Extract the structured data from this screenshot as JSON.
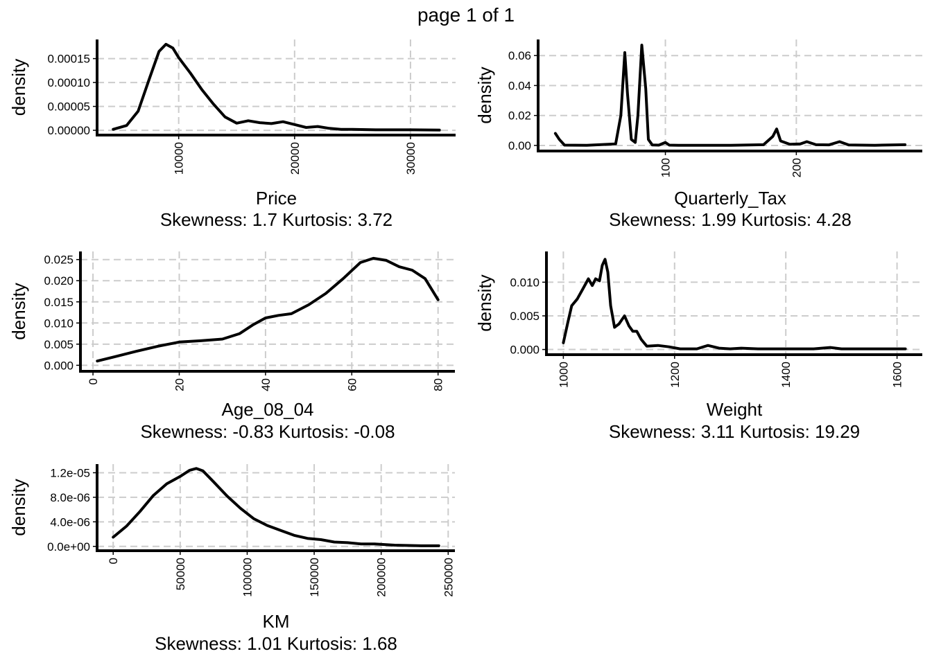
{
  "page": {
    "title": "page 1 of 1"
  },
  "chart_data": [
    {
      "type": "line",
      "variable": "Price",
      "xlabel": "Price",
      "ylabel": "density",
      "subtitle": "Skewness: 1.7 Kurtosis: 3.72",
      "xlim": [
        4350,
        32500
      ],
      "ylim": [
        0,
        0.00018
      ],
      "xticks": [
        10000,
        20000,
        30000
      ],
      "xtick_labels": [
        "10000",
        "20000",
        "30000"
      ],
      "xtick_rotation": "vertical",
      "yticks": [
        0,
        5e-05,
        0.0001,
        0.00015
      ],
      "ytick_labels": [
        "0.00000",
        "0.00005",
        "0.00010",
        "0.00015"
      ],
      "grid": true,
      "series": [
        {
          "x": [
            4350,
            5500,
            6500,
            7500,
            8300,
            8900,
            9500,
            10000,
            11000,
            12000,
            13000,
            14000,
            15000,
            16000,
            17000,
            18000,
            19000,
            20000,
            21000,
            22000,
            23000,
            24000,
            25000,
            27000,
            30000,
            32500
          ],
          "y": [
            2e-06,
            1e-05,
            4e-05,
            0.00011,
            0.000165,
            0.00018,
            0.000172,
            0.000152,
            0.00012,
            8.5e-05,
            5.5e-05,
            2.8e-05,
            1.5e-05,
            2e-05,
            1.6e-05,
            1.4e-05,
            1.8e-05,
            1.2e-05,
            6e-06,
            8e-06,
            4e-06,
            2e-06,
            2e-06,
            1e-06,
            1e-06,
            5e-07
          ]
        }
      ]
    },
    {
      "type": "line",
      "variable": "Quarterly_Tax",
      "xlabel": "Quarterly_Tax",
      "ylabel": "density",
      "subtitle": "Skewness: 1.99 Kurtosis: 4.28",
      "xlim": [
        16,
        283
      ],
      "ylim": [
        0,
        0.067
      ],
      "xticks": [
        100,
        200
      ],
      "xtick_labels": [
        "100",
        "200"
      ],
      "xtick_rotation": "vertical",
      "yticks": [
        0,
        0.02,
        0.04,
        0.06
      ],
      "ytick_labels": [
        "0.00",
        "0.02",
        "0.04",
        "0.06"
      ],
      "grid": true,
      "series": [
        {
          "x": [
            16,
            19,
            23,
            40,
            62,
            66,
            69,
            71,
            74,
            77,
            79,
            82,
            85,
            87,
            90,
            95,
            100,
            103,
            110,
            150,
            175,
            182,
            185,
            188,
            195,
            203,
            208,
            215,
            225,
            233,
            240,
            260,
            283
          ],
          "y": [
            0.008,
            0.004,
            0.0002,
            0.0001,
            0.001,
            0.02,
            0.062,
            0.035,
            0.004,
            0.002,
            0.02,
            0.067,
            0.038,
            0.004,
            0.0003,
            0.0002,
            0.002,
            0.0002,
            0.0001,
            0.0001,
            0.0005,
            0.006,
            0.011,
            0.003,
            0.0008,
            0.001,
            0.0025,
            0.0005,
            0.0004,
            0.0025,
            0.0003,
            0.0001,
            0.0005
          ]
        }
      ]
    },
    {
      "type": "line",
      "variable": "Age_08_04",
      "xlabel": "Age_08_04",
      "ylabel": "density",
      "subtitle": "Skewness: -0.83 Kurtosis: -0.08",
      "xlim": [
        1,
        80
      ],
      "ylim": [
        0,
        0.0255
      ],
      "xticks": [
        0,
        20,
        40,
        60,
        80
      ],
      "xtick_labels": [
        "0",
        "20",
        "40",
        "60",
        "80"
      ],
      "xtick_rotation": "vertical",
      "yticks": [
        0,
        0.005,
        0.01,
        0.015,
        0.02,
        0.025
      ],
      "ytick_labels": [
        "0.000",
        "0.005",
        "0.010",
        "0.015",
        "0.020",
        "0.025"
      ],
      "grid": true,
      "series": [
        {
          "x": [
            1,
            5,
            10,
            15,
            20,
            25,
            30,
            34,
            37,
            40,
            43,
            46,
            50,
            54,
            58,
            62,
            65,
            68,
            71,
            74,
            77,
            80
          ],
          "y": [
            0.001,
            0.002,
            0.0033,
            0.0045,
            0.0055,
            0.0058,
            0.0062,
            0.0075,
            0.0095,
            0.0112,
            0.0118,
            0.0122,
            0.0143,
            0.017,
            0.0205,
            0.0243,
            0.0253,
            0.0248,
            0.0233,
            0.0225,
            0.0205,
            0.0155
          ]
        }
      ]
    },
    {
      "type": "line",
      "variable": "Weight",
      "xlabel": "Weight",
      "ylabel": "density",
      "subtitle": "Skewness: 3.11 Kurtosis: 19.29",
      "xlim": [
        1000,
        1615
      ],
      "ylim": [
        0,
        0.0138
      ],
      "xticks": [
        1000,
        1200,
        1400,
        1600
      ],
      "xtick_labels": [
        "1000",
        "1200",
        "1400",
        "1600"
      ],
      "xtick_rotation": "vertical",
      "yticks": [
        0,
        0.005,
        0.01
      ],
      "ytick_labels": [
        "0.000",
        "0.005",
        "0.010"
      ],
      "grid": true,
      "series": [
        {
          "x": [
            1000,
            1008,
            1015,
            1025,
            1035,
            1045,
            1052,
            1058,
            1065,
            1070,
            1075,
            1080,
            1085,
            1092,
            1100,
            1110,
            1118,
            1125,
            1132,
            1140,
            1150,
            1170,
            1190,
            1210,
            1240,
            1260,
            1280,
            1300,
            1320,
            1350,
            1400,
            1450,
            1480,
            1500,
            1550,
            1615
          ],
          "y": [
            0.001,
            0.004,
            0.0065,
            0.0075,
            0.009,
            0.0105,
            0.0095,
            0.0105,
            0.0102,
            0.0125,
            0.0134,
            0.0115,
            0.0065,
            0.0033,
            0.0038,
            0.005,
            0.0035,
            0.0027,
            0.0027,
            0.0015,
            0.0005,
            0.0006,
            0.0004,
            0.0001,
            0.0001,
            0.0006,
            0.0002,
            0.0001,
            0.0002,
            0.0001,
            0.0001,
            0.0001,
            0.0003,
            0.0001,
            0.0001,
            0.0001
          ]
        }
      ]
    },
    {
      "type": "line",
      "variable": "KM",
      "xlabel": "KM",
      "ylabel": "density",
      "subtitle": "Skewness: 1.01 Kurtosis: 1.68",
      "xlim": [
        1,
        243000
      ],
      "ylim": [
        0,
        1.27e-05
      ],
      "xticks": [
        0,
        50000,
        100000,
        150000,
        200000,
        250000
      ],
      "xtick_labels": [
        "0",
        "50000",
        "100000",
        "150000",
        "200000",
        "250000"
      ],
      "xtick_rotation": "vertical",
      "yticks": [
        0,
        4e-06,
        8e-06,
        1.2e-05
      ],
      "ytick_labels": [
        "0.0e+00",
        "4.0e-06",
        "8.0e-06",
        "1.2e-05"
      ],
      "grid": true,
      "series": [
        {
          "x": [
            1,
            10000,
            20000,
            30000,
            40000,
            50000,
            57000,
            62000,
            67000,
            75000,
            85000,
            95000,
            105000,
            115000,
            125000,
            135000,
            145000,
            155000,
            165000,
            175000,
            185000,
            195000,
            210000,
            230000,
            243000
          ],
          "y": [
            1.5e-06,
            3.3e-06,
            5.7e-06,
            8.3e-06,
            1.02e-05,
            1.14e-05,
            1.24e-05,
            1.27e-05,
            1.23e-05,
            1.05e-05,
            8.2e-06,
            6.2e-06,
            4.5e-06,
            3.4e-06,
            2.6e-06,
            1.8e-06,
            1.3e-06,
            1.1e-06,
            7e-07,
            6e-07,
            4e-07,
            4e-07,
            2e-07,
            1e-07,
            1e-07
          ]
        }
      ]
    }
  ]
}
